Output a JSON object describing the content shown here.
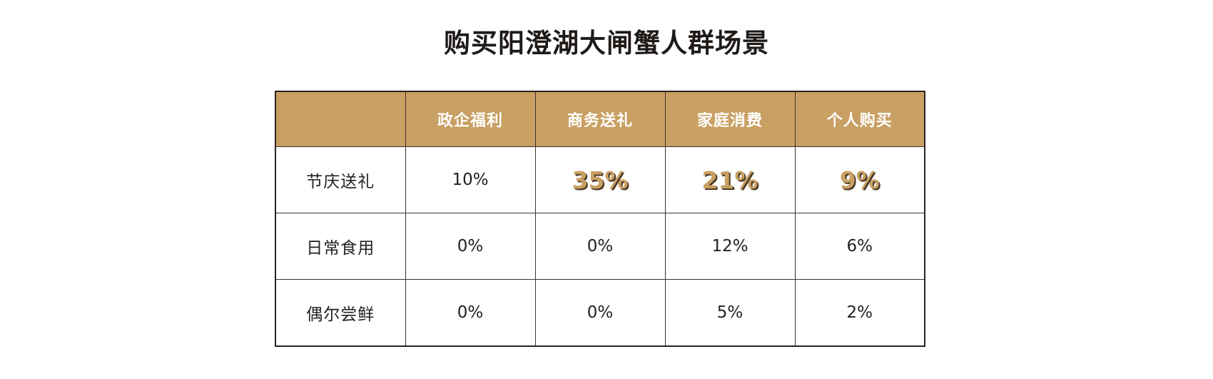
{
  "title": "购买阳澄湖大闸蟹人群场景",
  "table": {
    "corner": "",
    "columns": [
      "政企福利",
      "商务送礼",
      "家庭消费",
      "个人购买"
    ],
    "rows": [
      {
        "label": "节庆送礼",
        "cells": [
          "10%",
          "35%",
          "21%",
          "9%"
        ],
        "highlight": [
          false,
          true,
          true,
          true
        ]
      },
      {
        "label": "日常食用",
        "cells": [
          "0%",
          "0%",
          "12%",
          "6%"
        ],
        "highlight": [
          false,
          false,
          false,
          false
        ]
      },
      {
        "label": "偶尔尝鲜",
        "cells": [
          "0%",
          "0%",
          "5%",
          "2%"
        ],
        "highlight": [
          false,
          false,
          false,
          false
        ]
      }
    ]
  },
  "colors": {
    "header_background": "#c9a063",
    "header_text": "#ffffff",
    "highlight_text": "#c9a063",
    "border": "#2b2321"
  }
}
